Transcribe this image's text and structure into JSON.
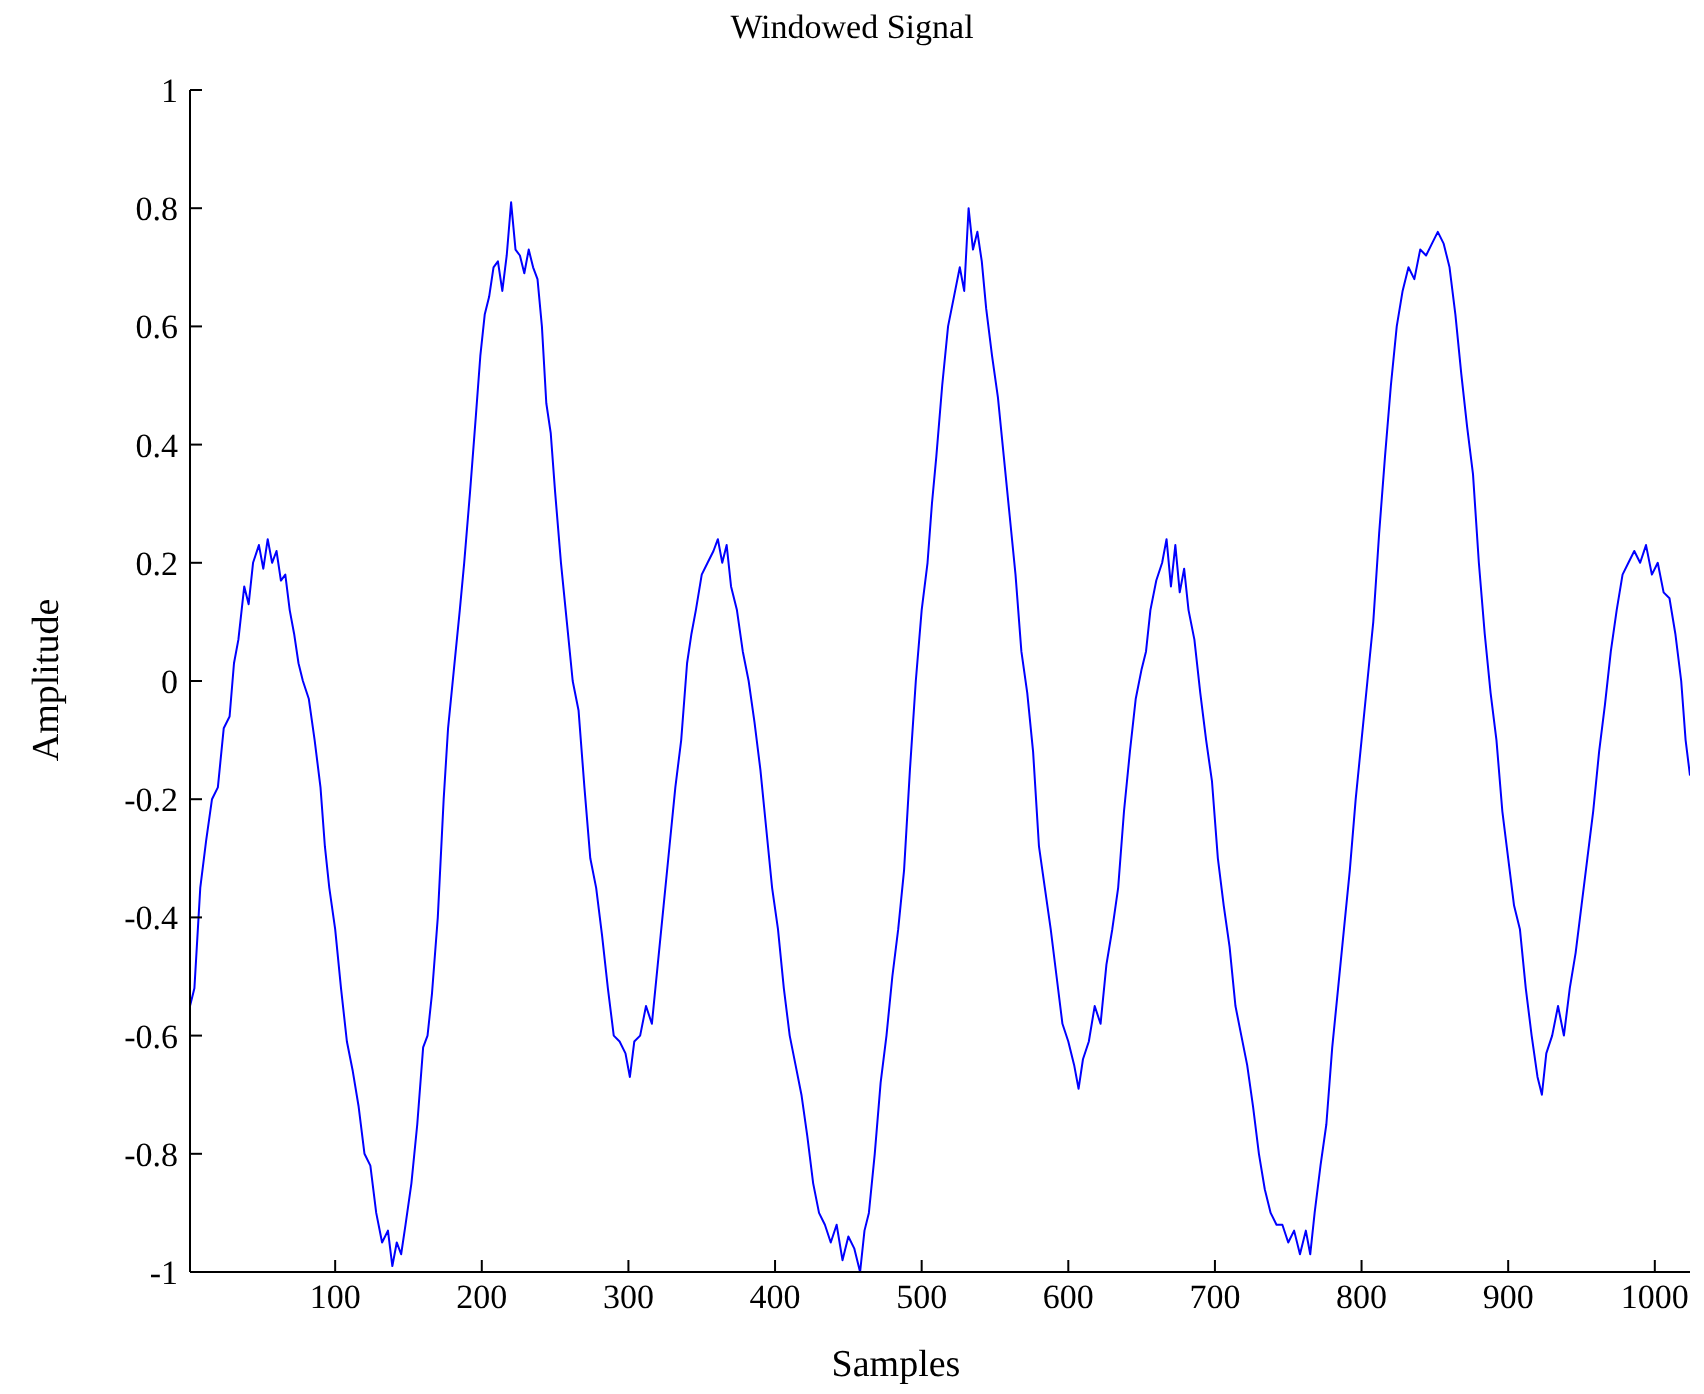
{
  "chart_data": {
    "type": "line",
    "title": "Windowed Signal",
    "xlabel": "Samples",
    "ylabel": "Amplitude",
    "xlim": [
      1,
      1024
    ],
    "xticks": [
      100,
      200,
      300,
      400,
      500,
      600,
      700,
      800,
      900,
      1000
    ],
    "ylim": [
      -1,
      1
    ],
    "yticks": [
      -1,
      -0.8,
      -0.6,
      -0.4,
      -0.2,
      0,
      0.2,
      0.4,
      0.6,
      0.8,
      1
    ],
    "x": [
      1,
      4,
      8,
      12,
      16,
      20,
      24,
      28,
      31,
      34,
      38,
      41,
      44,
      48,
      51,
      54,
      57,
      60,
      63,
      66,
      69,
      72,
      75,
      78,
      82,
      86,
      90,
      93,
      96,
      100,
      104,
      108,
      112,
      116,
      120,
      124,
      128,
      132,
      136,
      139,
      142,
      145,
      148,
      152,
      156,
      160,
      163,
      166,
      170,
      174,
      177,
      181,
      185,
      188,
      192,
      196,
      199,
      202,
      205,
      208,
      211,
      214,
      217,
      220,
      223,
      226,
      229,
      232,
      235,
      238,
      241,
      244,
      247,
      250,
      254,
      258,
      262,
      266,
      270,
      274,
      278,
      282,
      286,
      290,
      294,
      298,
      301,
      304,
      308,
      312,
      316,
      320,
      324,
      328,
      332,
      336,
      340,
      343,
      346,
      350,
      354,
      358,
      361,
      364,
      367,
      370,
      374,
      378,
      382,
      386,
      390,
      394,
      398,
      402,
      406,
      410,
      414,
      418,
      422,
      426,
      430,
      434,
      438,
      442,
      446,
      450,
      454,
      458,
      461,
      464,
      468,
      472,
      476,
      480,
      484,
      488,
      492,
      496,
      500,
      504,
      507,
      510,
      514,
      518,
      522,
      526,
      529,
      532,
      535,
      538,
      541,
      544,
      548,
      552,
      556,
      560,
      564,
      568,
      572,
      576,
      580,
      584,
      588,
      592,
      596,
      600,
      604,
      607,
      610,
      614,
      618,
      622,
      626,
      630,
      634,
      638,
      642,
      646,
      650,
      653,
      656,
      660,
      664,
      667,
      670,
      673,
      676,
      679,
      682,
      686,
      690,
      694,
      698,
      702,
      706,
      710,
      714,
      718,
      722,
      726,
      730,
      734,
      738,
      742,
      746,
      750,
      754,
      758,
      762,
      765,
      768,
      772,
      776,
      780,
      784,
      788,
      792,
      796,
      800,
      804,
      808,
      812,
      816,
      820,
      824,
      828,
      832,
      836,
      840,
      844,
      848,
      852,
      856,
      860,
      864,
      868,
      872,
      876,
      880,
      884,
      888,
      892,
      896,
      900,
      904,
      908,
      912,
      916,
      920,
      923,
      926,
      930,
      934,
      938,
      942,
      946,
      950,
      954,
      958,
      962,
      966,
      970,
      974,
      978,
      982,
      986,
      990,
      994,
      998,
      1002,
      1006,
      1010,
      1014,
      1018,
      1021,
      1024
    ],
    "series": [
      {
        "color": "#0000ff",
        "values": [
          -0.55,
          -0.52,
          -0.35,
          -0.27,
          -0.2,
          -0.18,
          -0.08,
          -0.06,
          0.03,
          0.07,
          0.16,
          0.13,
          0.2,
          0.23,
          0.19,
          0.24,
          0.2,
          0.22,
          0.17,
          0.18,
          0.12,
          0.08,
          0.03,
          0.0,
          -0.03,
          -0.1,
          -0.18,
          -0.28,
          -0.35,
          -0.42,
          -0.52,
          -0.61,
          -0.66,
          -0.72,
          -0.8,
          -0.82,
          -0.9,
          -0.95,
          -0.93,
          -0.99,
          -0.95,
          -0.97,
          -0.92,
          -0.85,
          -0.75,
          -0.62,
          -0.6,
          -0.53,
          -0.4,
          -0.2,
          -0.08,
          0.02,
          0.12,
          0.2,
          0.32,
          0.45,
          0.55,
          0.62,
          0.65,
          0.7,
          0.71,
          0.66,
          0.72,
          0.81,
          0.73,
          0.72,
          0.69,
          0.73,
          0.7,
          0.68,
          0.6,
          0.47,
          0.42,
          0.32,
          0.2,
          0.1,
          0.0,
          -0.05,
          -0.18,
          -0.3,
          -0.35,
          -0.43,
          -0.52,
          -0.6,
          -0.61,
          -0.63,
          -0.67,
          -0.61,
          -0.6,
          -0.55,
          -0.58,
          -0.48,
          -0.38,
          -0.28,
          -0.18,
          -0.1,
          0.03,
          0.08,
          0.12,
          0.18,
          0.2,
          0.22,
          0.24,
          0.2,
          0.23,
          0.16,
          0.12,
          0.05,
          0.0,
          -0.07,
          -0.15,
          -0.25,
          -0.35,
          -0.42,
          -0.52,
          -0.6,
          -0.65,
          -0.7,
          -0.77,
          -0.85,
          -0.9,
          -0.92,
          -0.95,
          -0.92,
          -0.98,
          -0.94,
          -0.96,
          -1.0,
          -0.93,
          -0.9,
          -0.8,
          -0.68,
          -0.6,
          -0.5,
          -0.42,
          -0.32,
          -0.15,
          0.0,
          0.12,
          0.2,
          0.3,
          0.38,
          0.5,
          0.6,
          0.65,
          0.7,
          0.66,
          0.8,
          0.73,
          0.76,
          0.71,
          0.63,
          0.55,
          0.48,
          0.38,
          0.28,
          0.18,
          0.05,
          -0.02,
          -0.12,
          -0.28,
          -0.35,
          -0.42,
          -0.5,
          -0.58,
          -0.61,
          -0.65,
          -0.69,
          -0.64,
          -0.61,
          -0.55,
          -0.58,
          -0.48,
          -0.42,
          -0.35,
          -0.22,
          -0.12,
          -0.03,
          0.02,
          0.05,
          0.12,
          0.17,
          0.2,
          0.24,
          0.16,
          0.23,
          0.15,
          0.19,
          0.12,
          0.07,
          -0.02,
          -0.1,
          -0.17,
          -0.3,
          -0.38,
          -0.45,
          -0.55,
          -0.6,
          -0.65,
          -0.72,
          -0.8,
          -0.86,
          -0.9,
          -0.92,
          -0.92,
          -0.95,
          -0.93,
          -0.97,
          -0.93,
          -0.97,
          -0.9,
          -0.82,
          -0.75,
          -0.62,
          -0.52,
          -0.42,
          -0.32,
          -0.2,
          -0.1,
          0.0,
          0.1,
          0.25,
          0.38,
          0.5,
          0.6,
          0.66,
          0.7,
          0.68,
          0.73,
          0.72,
          0.74,
          0.76,
          0.74,
          0.7,
          0.62,
          0.52,
          0.43,
          0.35,
          0.2,
          0.08,
          -0.02,
          -0.1,
          -0.22,
          -0.3,
          -0.38,
          -0.42,
          -0.52,
          -0.6,
          -0.67,
          -0.7,
          -0.63,
          -0.6,
          -0.55,
          -0.6,
          -0.52,
          -0.46,
          -0.38,
          -0.3,
          -0.22,
          -0.12,
          -0.04,
          0.05,
          0.12,
          0.18,
          0.2,
          0.22,
          0.2,
          0.23,
          0.18,
          0.2,
          0.15,
          0.14,
          0.08,
          0.0,
          -0.1,
          -0.16
        ]
      }
    ]
  }
}
